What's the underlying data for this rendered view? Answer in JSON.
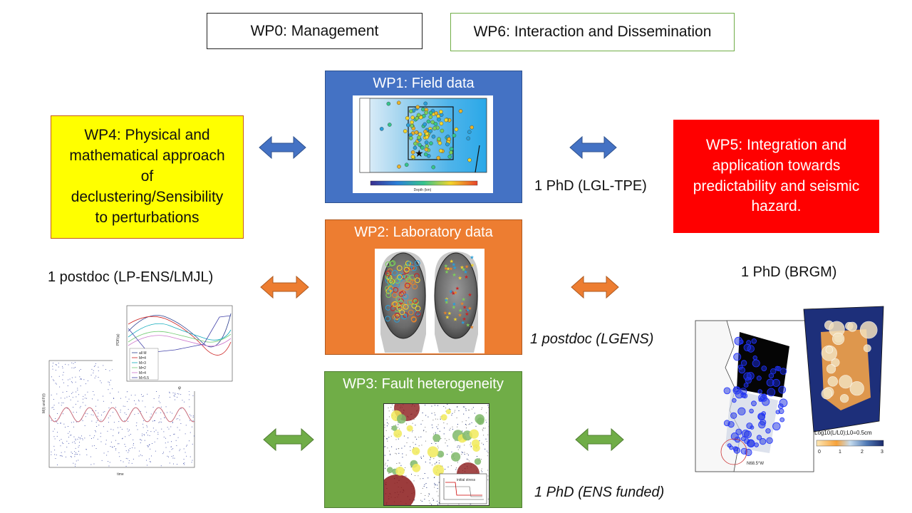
{
  "boxes": {
    "wp0": "WP0: Management",
    "wp6": "WP6: Interaction and Dissemination",
    "wp1": "WP1: Field data",
    "wp2": "WP2: Laboratory data",
    "wp3": "WP3: Fault heterogeneity",
    "wp4": [
      "WP4: Physical and",
      "mathematical approach",
      "of",
      "declustering/Sensibility",
      "to perturbations"
    ],
    "wp5": [
      "WP5: Integration and",
      "application towards",
      "predictability and seismic",
      "hazard."
    ]
  },
  "positions": {
    "wp1": "1 PhD (LGL-TPE)",
    "wp4": "1 postdoc (LP-ENS/LMJL)",
    "wp2": "1 postdoc (LGENS)",
    "wp5": "1 PhD (BRGM)",
    "wp3": "1 PhD (ENS funded)"
  },
  "colors": {
    "wp1": "#4472c4",
    "wp2": "#ed7d31",
    "wp3": "#70ad47",
    "wp4": "#ffff00",
    "wp5": "#ff0000",
    "arrow_blue": "#4472c4",
    "arrow_orange": "#ed7d31",
    "arrow_green": "#70ad47"
  },
  "icons": {
    "arrows": "double-headed-arrow"
  },
  "figures": {
    "wp1_map_colorbar": "Depth (km)",
    "wp3_inset_label": "initial stress",
    "wp5_map_scale": "Log10(L/L0);L0=0.5cm",
    "wp5_map_direction": "N68.5°W",
    "wp5_colorbar_ticks": [
      "0",
      "1",
      "2",
      "3"
    ],
    "plot_xlabel_top": "φ",
    "plot_ylabel_top": "PDF(φ)",
    "plot_xlabel_bottom": "time",
    "plot_ylabel_bottom": "M(t) and F(t)",
    "plot_legend": [
      "all M",
      "M=4",
      "M>3",
      "M=2",
      "M>4",
      "M>5.5"
    ]
  }
}
